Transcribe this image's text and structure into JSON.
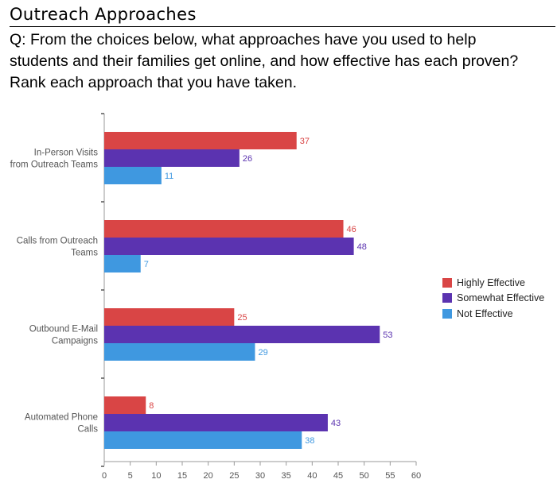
{
  "header": {
    "title": "Outreach Approaches",
    "question_lines": [
      "Q: From the choices below, what approaches have you used to help",
      "students and their families get online, and how effective has each proven?",
      "Rank each approach that you have taken."
    ]
  },
  "chart_data": {
    "type": "bar",
    "orientation": "horizontal",
    "categories": [
      [
        "In-Person Visits",
        "from Outreach Teams"
      ],
      [
        "Calls from Outreach",
        "Teams"
      ],
      [
        "Outbound E-Mail",
        "Campaigns"
      ],
      [
        "Automated Phone",
        "Calls"
      ]
    ],
    "series": [
      {
        "name": "Highly Effective",
        "color": "#d94545",
        "values": [
          37,
          46,
          25,
          8
        ]
      },
      {
        "name": "Somewhat Effective",
        "color": "#5b33b0",
        "values": [
          26,
          48,
          53,
          43
        ]
      },
      {
        "name": "Not Effective",
        "color": "#3f98e0",
        "values": [
          11,
          7,
          29,
          38
        ]
      }
    ],
    "xlim": [
      0,
      60
    ],
    "xticks": [
      0,
      5,
      10,
      15,
      20,
      25,
      30,
      35,
      40,
      45,
      50,
      55,
      60
    ],
    "legend_position": "right",
    "grid": false
  }
}
